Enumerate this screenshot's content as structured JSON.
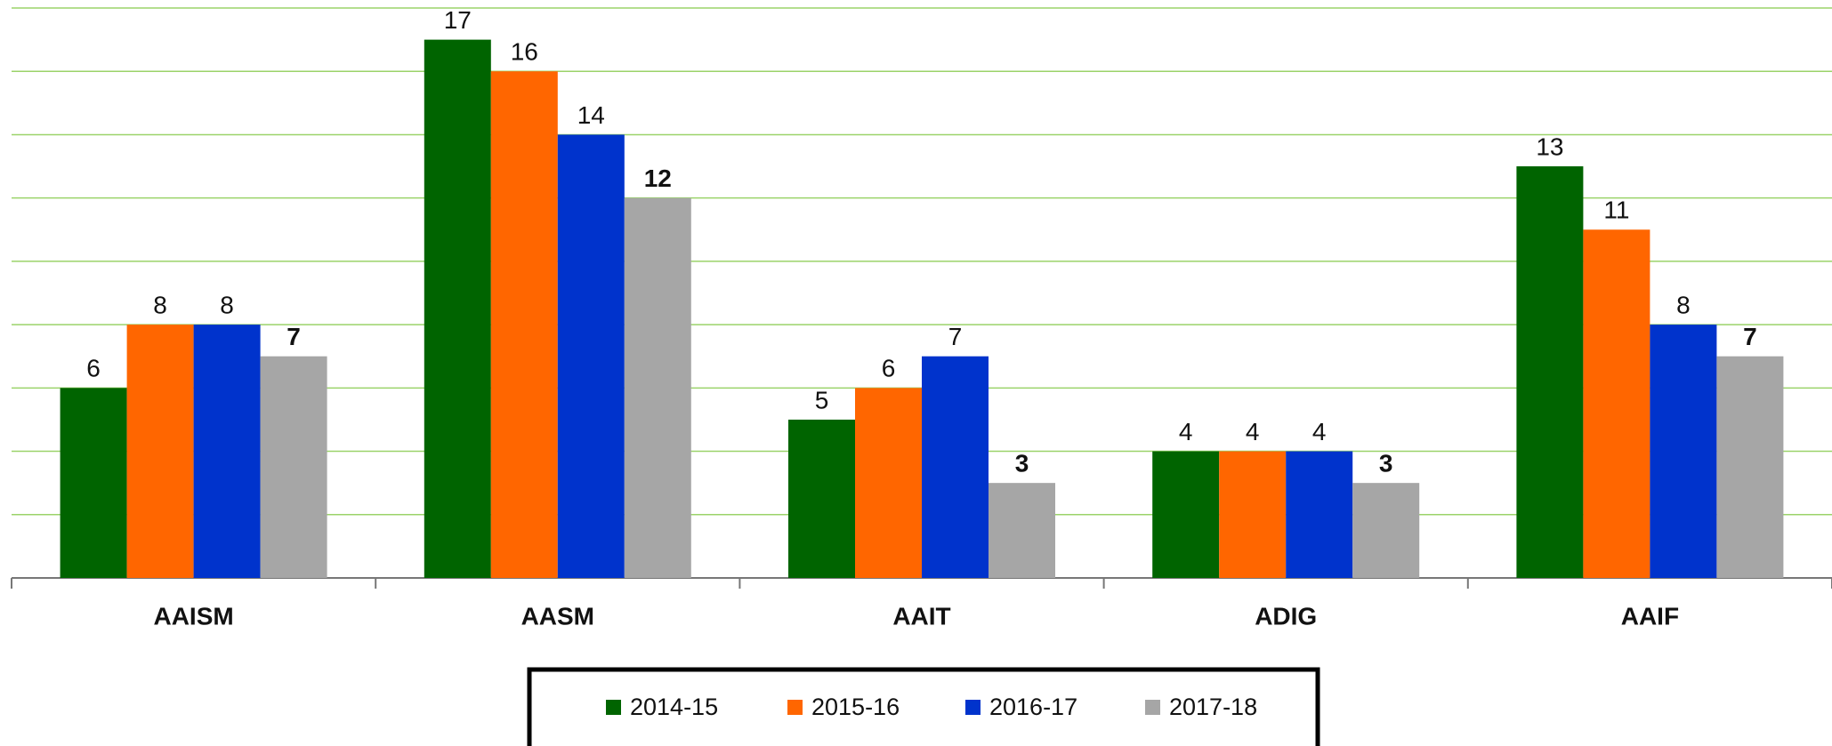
{
  "chart_data": {
    "type": "bar",
    "categories": [
      "AAISM",
      "AASM",
      "AAIT",
      "ADIG",
      "AAIF"
    ],
    "series": [
      {
        "name": "2014-15",
        "color": "#006400",
        "values": [
          6,
          17,
          5,
          4,
          13
        ]
      },
      {
        "name": "2015-16",
        "color": "#ff6600",
        "values": [
          8,
          16,
          6,
          4,
          11
        ]
      },
      {
        "name": "2016-17",
        "color": "#0033cc",
        "values": [
          8,
          14,
          7,
          4,
          8
        ]
      },
      {
        "name": "2017-18",
        "color": "#a6a6a6",
        "values": [
          7,
          12,
          3,
          3,
          7
        ]
      }
    ],
    "ylim": [
      0,
      18
    ],
    "yticks": [
      0,
      2,
      4,
      6,
      8,
      10,
      12,
      14,
      16,
      18
    ],
    "grid": true
  }
}
